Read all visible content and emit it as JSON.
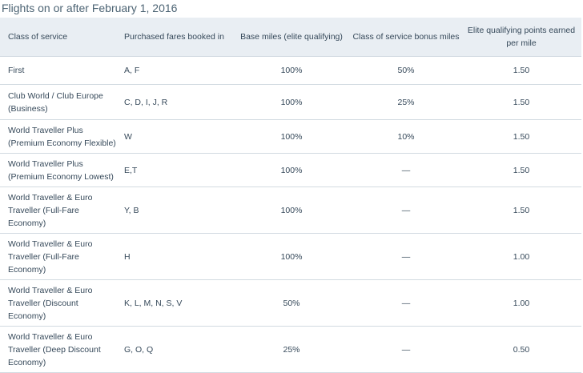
{
  "title": "Flights on or after February 1, 2016",
  "headers": [
    "Class of service",
    "Purchased fares booked in",
    "Base miles (elite qualifying)",
    "Class of service bonus miles",
    "Elite qualifying points earned per mile"
  ],
  "rows": [
    {
      "cls": "First",
      "fares": "A, F",
      "base": "100%",
      "bonus": "50%",
      "points": "1.50"
    },
    {
      "cls": "Club World / Club Europe (Business)",
      "fares": "C, D, I, J, R",
      "base": "100%",
      "bonus": "25%",
      "points": "1.50"
    },
    {
      "cls": "World Traveller Plus (Premium Economy Flexible)",
      "fares": "W",
      "base": "100%",
      "bonus": "10%",
      "points": "1.50"
    },
    {
      "cls": "World Traveller Plus (Premium Economy Lowest)",
      "fares": "E,T",
      "base": "100%",
      "bonus": "—",
      "points": "1.50"
    },
    {
      "cls": "World Traveller & Euro Traveller (Full-Fare Economy)",
      "fares": "Y, B",
      "base": "100%",
      "bonus": "—",
      "points": "1.50"
    },
    {
      "cls": "World Traveller & Euro Traveller (Full-Fare Economy)",
      "fares": "H",
      "base": "100%",
      "bonus": "—",
      "points": "1.00"
    },
    {
      "cls": "World Traveller & Euro Traveller (Discount Economy)",
      "fares": "K, L, M, N, S, V",
      "base": "50%",
      "bonus": "—",
      "points": "1.00"
    },
    {
      "cls": "World Traveller & Euro Traveller (Deep Discount Economy)",
      "fares": "G, O, Q",
      "base": "25%",
      "bonus": "—",
      "points": "0.50"
    }
  ]
}
